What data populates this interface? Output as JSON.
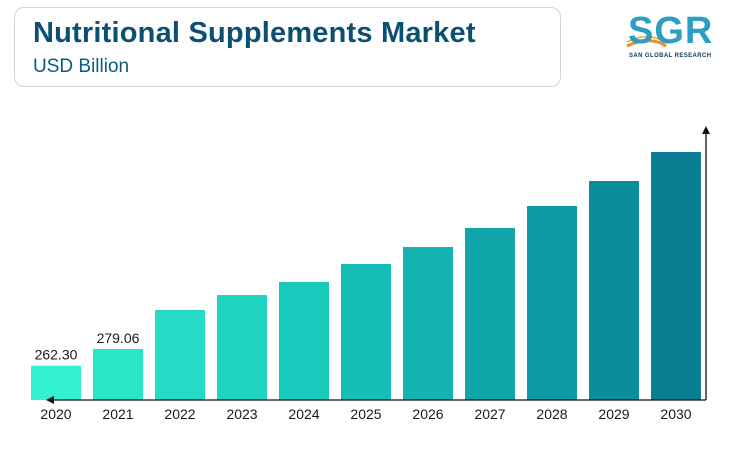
{
  "header": {
    "title": "Nutritional Supplements Market",
    "subtitle": "USD Billion"
  },
  "logo": {
    "text": "SGR",
    "tagline": "SAN GLOBAL RESEARCH",
    "color": "#2a9fc3",
    "accent_color": "#f28c28"
  },
  "chart_data": {
    "type": "bar",
    "categories": [
      "2020",
      "2021",
      "2022",
      "2023",
      "2024",
      "2025",
      "2026",
      "2027",
      "2028",
      "2029",
      "2030"
    ],
    "values": [
      262.3,
      279.06,
      318,
      333,
      346,
      364,
      381,
      400,
      422,
      447,
      476
    ],
    "data_labels": [
      "262.30",
      "279.06",
      null,
      null,
      null,
      null,
      null,
      null,
      null,
      null,
      null
    ],
    "title": "Nutritional Supplements Market",
    "ylabel": "",
    "xlabel": "",
    "ylim": [
      228,
      500
    ],
    "grid": false,
    "colors": [
      "#33f0d0",
      "#2ae6c8",
      "#24dcc6",
      "#1fd4c2",
      "#19cabc",
      "#15bfb6",
      "#12b3b0",
      "#10a5a8",
      "#0e9aa2",
      "#0c8d9b",
      "#0a7f94"
    ]
  }
}
